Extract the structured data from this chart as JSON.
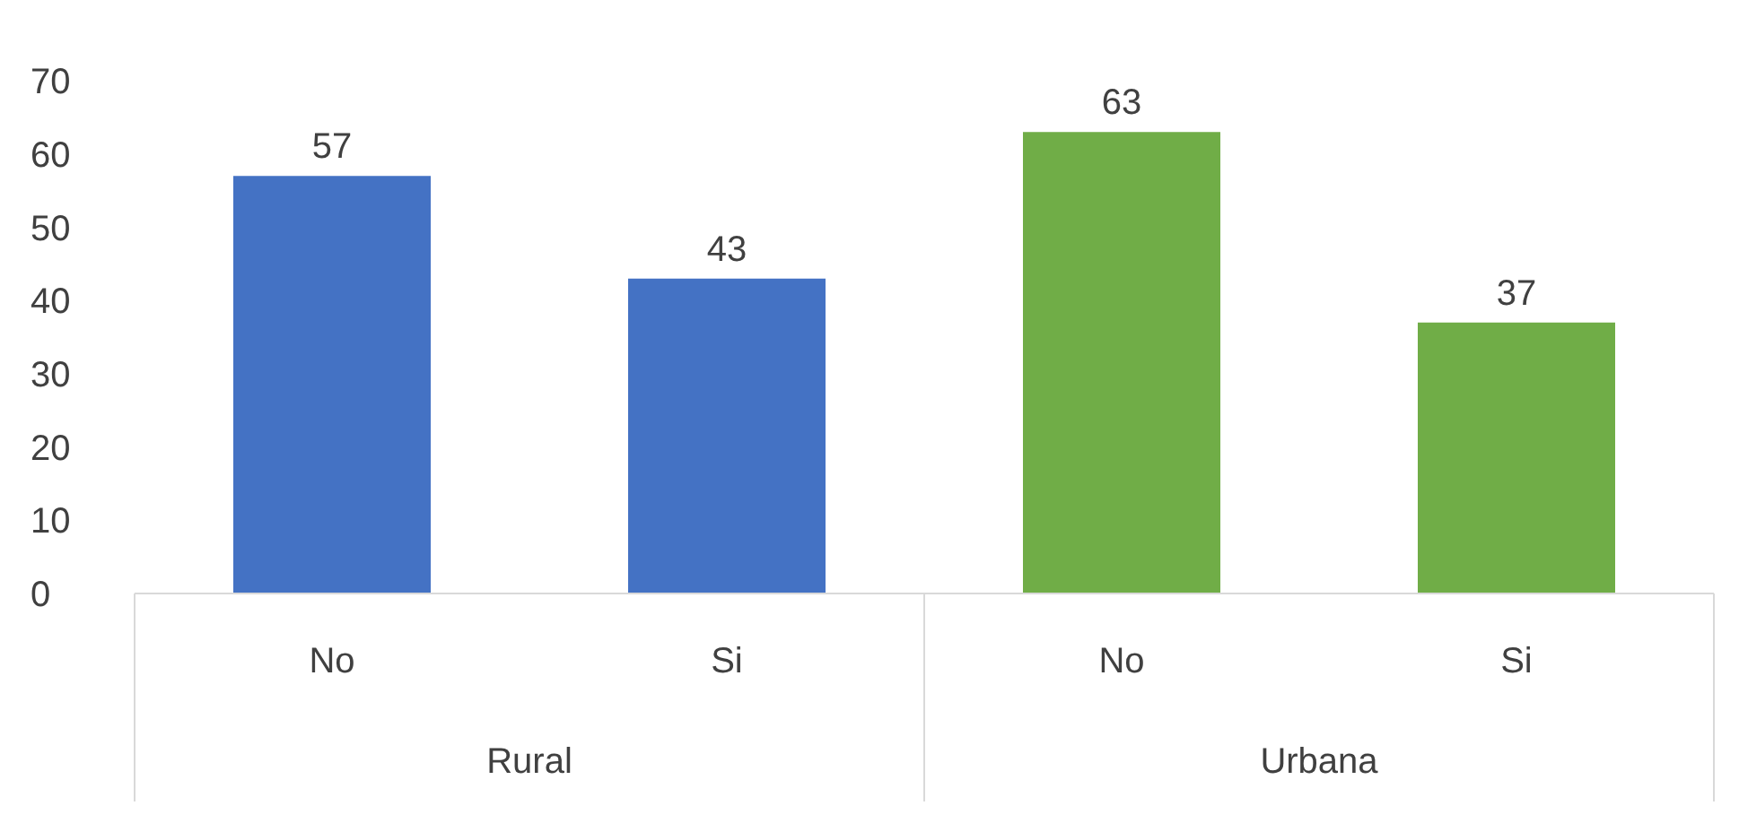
{
  "chart_data": {
    "type": "bar",
    "categories": [
      "No",
      "Si",
      "No",
      "Si"
    ],
    "values": [
      57,
      43,
      63,
      37
    ],
    "colors": [
      "#4472c4",
      "#4472c4",
      "#70ad47",
      "#70ad47"
    ],
    "ylim": [
      0,
      70
    ],
    "yticks": [
      0,
      10,
      20,
      30,
      40,
      50,
      60,
      70
    ],
    "data_labels": true,
    "annotations": [
      "Rural",
      "Urbana"
    ]
  }
}
